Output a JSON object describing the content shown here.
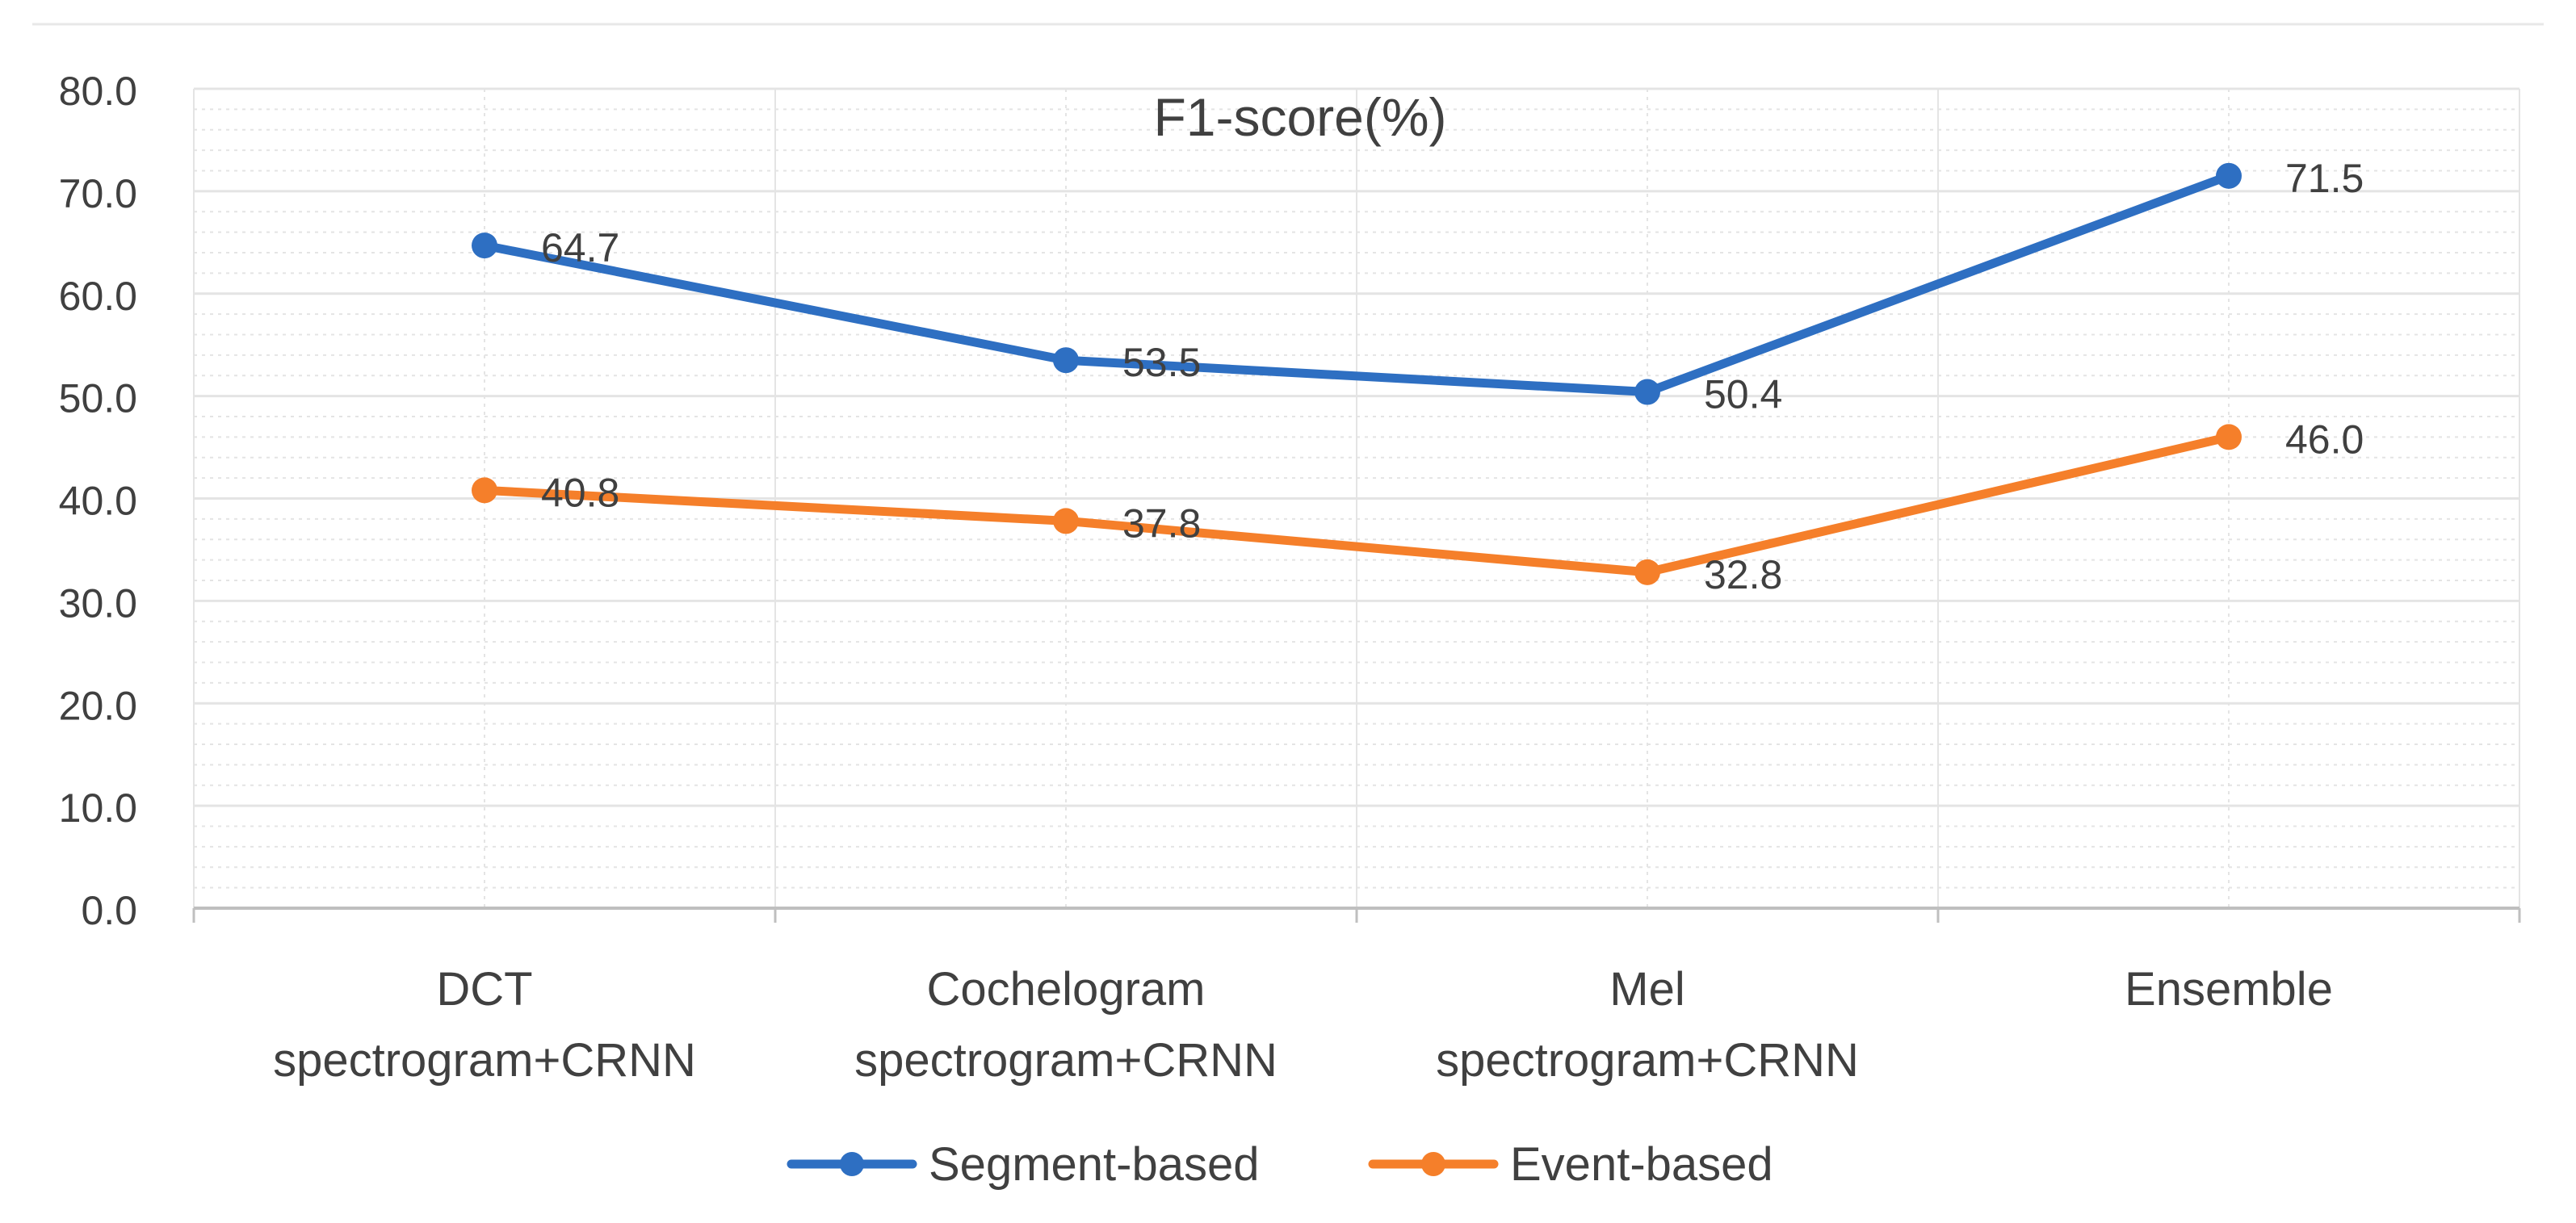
{
  "chart_data": {
    "type": "line",
    "title": "F1-score(%)",
    "xlabel": "",
    "ylabel": "",
    "categories": [
      [
        "DCT",
        "spectrogram+CRNN"
      ],
      [
        "Cochelogram",
        "spectrogram+CRNN"
      ],
      [
        "Mel",
        "spectrogram+CRNN"
      ],
      [
        "Ensemble"
      ]
    ],
    "ylim": [
      0,
      80
    ],
    "yticks": [
      "0.0",
      "10.0",
      "20.0",
      "30.0",
      "40.0",
      "50.0",
      "60.0",
      "70.0",
      "80.0"
    ],
    "grid": true,
    "legend_position": "bottom-center",
    "series": [
      {
        "name": "Segment-based",
        "values": [
          64.7,
          53.5,
          50.4,
          71.5
        ],
        "labels": [
          "64.7",
          "53.5",
          "50.4",
          "71.5"
        ],
        "color": "#2E6FC2"
      },
      {
        "name": "Event-based",
        "values": [
          40.8,
          37.8,
          32.8,
          46.0
        ],
        "labels": [
          "40.8",
          "37.8",
          "32.8",
          "46.0"
        ],
        "color": "#F57F2A"
      }
    ],
    "colors": {
      "grid": "#E4E4E4",
      "axis": "#BFBFBF",
      "text": "#404040"
    }
  }
}
